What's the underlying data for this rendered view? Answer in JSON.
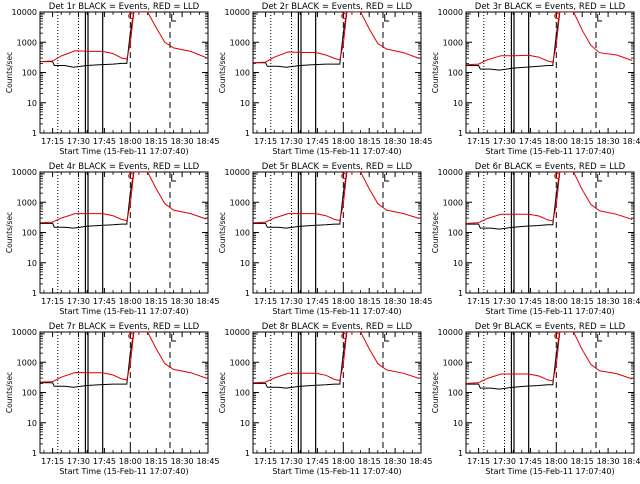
{
  "common": {
    "xlabel": "Start Time (15-Feb-11 17:07:40)",
    "ylabel": "Counts/sec",
    "x_ticks": [
      "17:15",
      "17:30",
      "17:45",
      "18:00",
      "18:15",
      "18:30",
      "18:45"
    ],
    "y_ticks": [
      "1",
      "10",
      "100",
      "1000",
      "10000"
    ],
    "legend_black": "BLACK = Events,",
    "legend_red": "RED = LLD",
    "colors": {
      "events": "#000000",
      "lld": "#e00000"
    }
  },
  "chart_data": [
    {
      "type": "line",
      "title": "Det 1r BLACK = Events, RED = LLD",
      "x_unit": "minutes after 17:00 UT",
      "xlim": [
        7.7,
        105
      ],
      "ylim": [
        1,
        10000
      ],
      "y_scale": "log",
      "dotted_lines_x": [
        18,
        30
      ],
      "solid_lines_x": [
        34,
        35.5,
        44
      ],
      "dashed_lines_x": [
        60,
        83
      ],
      "series": [
        {
          "name": "BLACK = Events",
          "x": [
            8,
            15,
            16,
            22,
            27,
            35,
            42,
            50,
            55,
            58,
            60,
            62
          ],
          "y": [
            230,
            230,
            170,
            170,
            150,
            170,
            180,
            190,
            200,
            200,
            2000,
            10000
          ]
        },
        {
          "name": "RED = LLD",
          "x": [
            8,
            15,
            20,
            28,
            36,
            44,
            50,
            55,
            58,
            60,
            62,
            70,
            75,
            80,
            85,
            95,
            104
          ],
          "y": [
            230,
            240,
            350,
            520,
            500,
            500,
            420,
            300,
            280,
            900,
            10000,
            10000,
            3000,
            1000,
            650,
            500,
            310
          ]
        }
      ]
    },
    {
      "type": "line",
      "title": "Det 2r BLACK = Events, RED = LLD",
      "x_unit": "minutes after 17:00 UT",
      "xlim": [
        7.7,
        105
      ],
      "ylim": [
        1,
        10000
      ],
      "y_scale": "log",
      "dotted_lines_x": [
        18,
        30
      ],
      "solid_lines_x": [
        34,
        35.5,
        44
      ],
      "dashed_lines_x": [
        60,
        83
      ],
      "series": [
        {
          "name": "BLACK = Events",
          "x": [
            8,
            15,
            16,
            22,
            27,
            35,
            42,
            50,
            55,
            58,
            60,
            62
          ],
          "y": [
            210,
            210,
            160,
            160,
            150,
            170,
            180,
            190,
            190,
            190,
            2000,
            10000
          ]
        },
        {
          "name": "RED = LLD",
          "x": [
            8,
            15,
            20,
            28,
            36,
            44,
            50,
            55,
            58,
            60,
            62,
            70,
            75,
            80,
            85,
            95,
            104
          ],
          "y": [
            210,
            220,
            320,
            480,
            460,
            460,
            380,
            290,
            260,
            850,
            10000,
            10000,
            2800,
            900,
            600,
            450,
            290
          ]
        }
      ]
    },
    {
      "type": "line",
      "title": "Det 3r BLACK = Events, RED = LLD",
      "x_unit": "minutes after 17:00 UT",
      "xlim": [
        7.7,
        105
      ],
      "ylim": [
        1,
        10000
      ],
      "y_scale": "log",
      "dotted_lines_x": [
        18,
        30
      ],
      "solid_lines_x": [
        34,
        35.5,
        44
      ],
      "dashed_lines_x": [
        60,
        83
      ],
      "series": [
        {
          "name": "BLACK = Events",
          "x": [
            8,
            15,
            16,
            22,
            27,
            35,
            42,
            50,
            55,
            58,
            60,
            62
          ],
          "y": [
            170,
            170,
            130,
            130,
            120,
            140,
            150,
            160,
            170,
            170,
            1800,
            10000
          ]
        },
        {
          "name": "RED = LLD",
          "x": [
            8,
            15,
            20,
            28,
            36,
            44,
            50,
            55,
            58,
            60,
            62,
            70,
            75,
            80,
            85,
            95,
            104
          ],
          "y": [
            180,
            190,
            260,
            360,
            360,
            370,
            320,
            240,
            220,
            800,
            10000,
            10000,
            2500,
            800,
            450,
            380,
            250
          ]
        }
      ]
    },
    {
      "type": "line",
      "title": "Det 4r BLACK = Events, RED = LLD",
      "x_unit": "minutes after 17:00 UT",
      "xlim": [
        7.7,
        105
      ],
      "ylim": [
        1,
        10000
      ],
      "y_scale": "log",
      "dotted_lines_x": [
        18,
        30
      ],
      "solid_lines_x": [
        34,
        35.5,
        44
      ],
      "dashed_lines_x": [
        60,
        83
      ],
      "series": [
        {
          "name": "BLACK = Events",
          "x": [
            8,
            15,
            16,
            22,
            27,
            35,
            42,
            50,
            55,
            58,
            60,
            62
          ],
          "y": [
            200,
            200,
            150,
            150,
            140,
            160,
            170,
            180,
            190,
            190,
            2000,
            10000
          ]
        },
        {
          "name": "RED = LLD",
          "x": [
            8,
            15,
            20,
            28,
            36,
            44,
            50,
            55,
            58,
            60,
            62,
            70,
            75,
            80,
            85,
            95,
            104
          ],
          "y": [
            210,
            220,
            300,
            420,
            420,
            420,
            360,
            270,
            250,
            850,
            10000,
            10000,
            2800,
            900,
            550,
            420,
            280
          ]
        }
      ]
    },
    {
      "type": "line",
      "title": "Det 5r BLACK = Events, RED = LLD",
      "x_unit": "minutes after 17:00 UT",
      "xlim": [
        7.7,
        105
      ],
      "ylim": [
        1,
        10000
      ],
      "y_scale": "log",
      "dotted_lines_x": [
        18,
        30
      ],
      "solid_lines_x": [
        34,
        35.5,
        44
      ],
      "dashed_lines_x": [
        60,
        83
      ],
      "series": [
        {
          "name": "BLACK = Events",
          "x": [
            8,
            15,
            16,
            22,
            27,
            35,
            42,
            50,
            55,
            58,
            60,
            62
          ],
          "y": [
            200,
            200,
            150,
            150,
            140,
            160,
            170,
            180,
            190,
            190,
            2000,
            10000
          ]
        },
        {
          "name": "RED = LLD",
          "x": [
            8,
            15,
            20,
            28,
            36,
            44,
            50,
            55,
            58,
            60,
            62,
            70,
            75,
            80,
            85,
            95,
            104
          ],
          "y": [
            210,
            220,
            300,
            420,
            420,
            420,
            360,
            270,
            250,
            850,
            10000,
            10000,
            2800,
            900,
            550,
            420,
            290
          ]
        }
      ]
    },
    {
      "type": "line",
      "title": "Det 6r BLACK = Events, RED = LLD",
      "x_unit": "minutes after 17:00 UT",
      "xlim": [
        7.7,
        105
      ],
      "ylim": [
        1,
        10000
      ],
      "y_scale": "log",
      "dotted_lines_x": [
        18,
        30
      ],
      "solid_lines_x": [
        34,
        35.5,
        44
      ],
      "dashed_lines_x": [
        60,
        83
      ],
      "series": [
        {
          "name": "BLACK = Events",
          "x": [
            8,
            15,
            16,
            22,
            27,
            35,
            42,
            50,
            55,
            58,
            60,
            62
          ],
          "y": [
            190,
            190,
            140,
            140,
            130,
            150,
            160,
            170,
            180,
            180,
            1900,
            10000
          ]
        },
        {
          "name": "RED = LLD",
          "x": [
            8,
            15,
            20,
            28,
            36,
            44,
            50,
            55,
            58,
            60,
            62,
            70,
            75,
            80,
            85,
            95,
            104
          ],
          "y": [
            200,
            210,
            290,
            400,
            400,
            400,
            350,
            260,
            240,
            800,
            10000,
            10000,
            2600,
            850,
            520,
            400,
            270
          ]
        }
      ]
    },
    {
      "type": "line",
      "title": "Det 7r BLACK = Events, RED = LLD",
      "x_unit": "minutes after 17:00 UT",
      "xlim": [
        7.7,
        105
      ],
      "ylim": [
        1,
        10000
      ],
      "y_scale": "log",
      "dotted_lines_x": [
        18,
        30
      ],
      "solid_lines_x": [
        34,
        35.5,
        44
      ],
      "dashed_lines_x": [
        60,
        83
      ],
      "series": [
        {
          "name": "BLACK = Events",
          "x": [
            8,
            15,
            16,
            22,
            27,
            35,
            42,
            50,
            55,
            58,
            60,
            62
          ],
          "y": [
            210,
            210,
            160,
            160,
            150,
            170,
            180,
            190,
            190,
            190,
            2000,
            10000
          ]
        },
        {
          "name": "RED = LLD",
          "x": [
            8,
            15,
            20,
            28,
            36,
            44,
            50,
            55,
            58,
            60,
            62,
            70,
            75,
            80,
            85,
            95,
            104
          ],
          "y": [
            220,
            230,
            320,
            460,
            450,
            450,
            380,
            280,
            260,
            850,
            10000,
            10000,
            2800,
            900,
            580,
            450,
            300
          ]
        }
      ]
    },
    {
      "type": "line",
      "title": "Det 8r BLACK = Events, RED = LLD",
      "x_unit": "minutes after 17:00 UT",
      "xlim": [
        7.7,
        105
      ],
      "ylim": [
        1,
        10000
      ],
      "y_scale": "log",
      "dotted_lines_x": [
        18,
        30
      ],
      "solid_lines_x": [
        34,
        35.5,
        44
      ],
      "dashed_lines_x": [
        60,
        83
      ],
      "series": [
        {
          "name": "BLACK = Events",
          "x": [
            8,
            15,
            16,
            22,
            27,
            35,
            42,
            50,
            55,
            58,
            60,
            62
          ],
          "y": [
            200,
            200,
            150,
            150,
            140,
            160,
            170,
            180,
            190,
            190,
            2000,
            10000
          ]
        },
        {
          "name": "RED = LLD",
          "x": [
            8,
            15,
            20,
            28,
            36,
            44,
            50,
            55,
            58,
            60,
            62,
            70,
            75,
            80,
            85,
            95,
            104
          ],
          "y": [
            210,
            220,
            300,
            430,
            430,
            430,
            370,
            270,
            250,
            850,
            10000,
            10000,
            2800,
            900,
            560,
            430,
            290
          ]
        }
      ]
    },
    {
      "type": "line",
      "title": "Det 9r BLACK = Events, RED = LLD",
      "x_unit": "minutes after 17:00 UT",
      "xlim": [
        7.7,
        105
      ],
      "ylim": [
        1,
        10000
      ],
      "y_scale": "log",
      "dotted_lines_x": [
        18,
        30
      ],
      "solid_lines_x": [
        34,
        35.5,
        44
      ],
      "dashed_lines_x": [
        60,
        83
      ],
      "series": [
        {
          "name": "BLACK = Events",
          "x": [
            8,
            15,
            16,
            22,
            27,
            35,
            42,
            50,
            55,
            58,
            60,
            62
          ],
          "y": [
            190,
            190,
            140,
            140,
            130,
            150,
            160,
            170,
            180,
            180,
            1900,
            10000
          ]
        },
        {
          "name": "RED = LLD",
          "x": [
            8,
            15,
            20,
            28,
            36,
            44,
            50,
            55,
            58,
            60,
            62,
            70,
            75,
            80,
            85,
            95,
            104
          ],
          "y": [
            200,
            210,
            290,
            410,
            410,
            410,
            350,
            260,
            240,
            800,
            10000,
            10000,
            2600,
            850,
            520,
            420,
            280
          ]
        }
      ]
    }
  ]
}
